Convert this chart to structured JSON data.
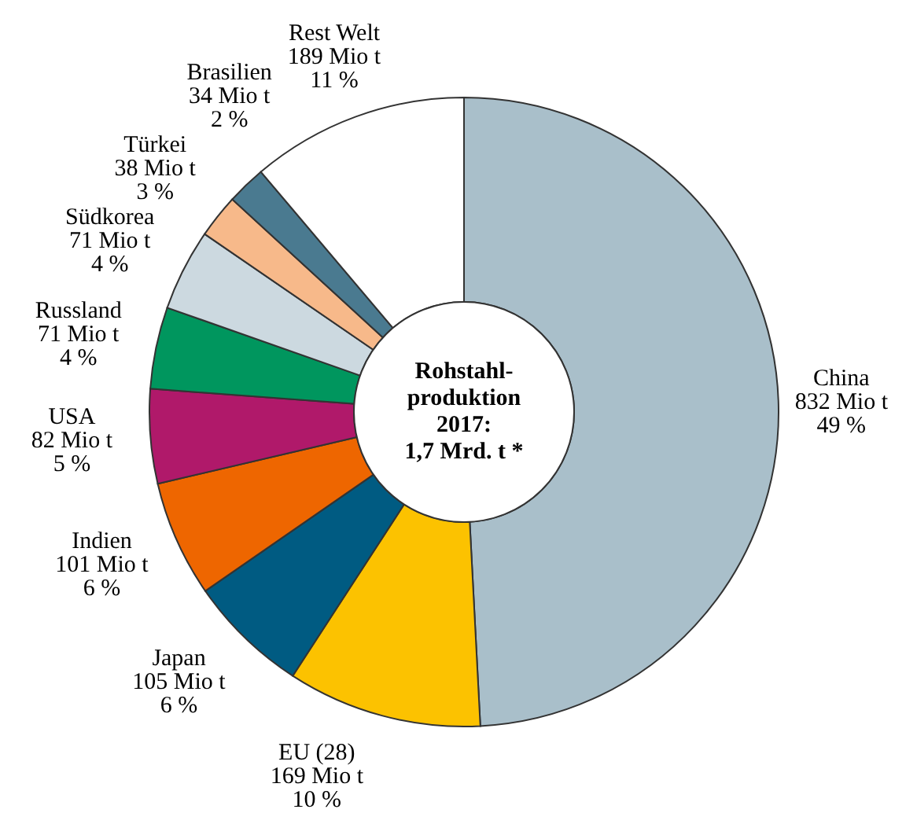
{
  "chart_data": {
    "type": "donut",
    "title": "Rohstahl-produktion 2017: 1,7 Mrd. t *",
    "categories": [
      "China",
      "EU (28)",
      "Japan",
      "Indien",
      "USA",
      "Russland",
      "Südkorea",
      "Türkei",
      "Brasilien",
      "Rest Welt"
    ],
    "values": [
      832,
      169,
      105,
      101,
      82,
      71,
      71,
      38,
      34,
      189
    ],
    "colors": [
      "#a9bfca",
      "#fcc200",
      "#005b82",
      "#ee6600",
      "#b0196a",
      "#00965e",
      "#ccd9e0",
      "#f7b98a",
      "#4a7a90",
      "#ffffff"
    ],
    "value_labels": [
      "832 Mio t\n49 %",
      "169 Mio t\n10 %",
      "105 Mio t\n6 %",
      "101 Mio t\n6 %",
      "82 Mio t\n5 %",
      "71 Mio t\n4 %",
      "71 Mio t\n4 %",
      "38 Mio t\n3 %",
      "34 Mio t\n2 %",
      "189 Mio t\n11 %"
    ]
  }
}
